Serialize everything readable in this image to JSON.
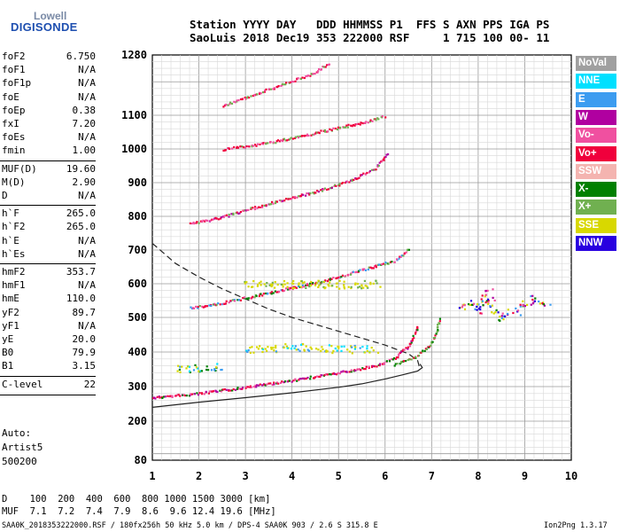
{
  "logo": {
    "line1": "Lowell",
    "line2": "DIGISONDE"
  },
  "header": {
    "row1": "Station YYYY DAY   DDD HHMMSS P1  FFS S AXN PPS IGA PS",
    "row2": "SaoLuis 2018 Dec19 353 222000 RSF     1 715 100 00- 11"
  },
  "params": [
    {
      "group": 1,
      "name": "foF2",
      "value": "6.750"
    },
    {
      "group": 1,
      "name": "foF1",
      "value": "N/A"
    },
    {
      "group": 1,
      "name": "foF1p",
      "value": "N/A"
    },
    {
      "group": 1,
      "name": "foE",
      "value": "N/A"
    },
    {
      "group": 1,
      "name": "foEp",
      "value": "0.38"
    },
    {
      "group": 1,
      "name": "fxI",
      "value": "7.20"
    },
    {
      "group": 1,
      "name": "foEs",
      "value": "N/A"
    },
    {
      "group": 1,
      "name": "fmin",
      "value": "1.00"
    },
    {
      "group": 2,
      "name": "MUF(D)",
      "value": "19.60"
    },
    {
      "group": 2,
      "name": "M(D)",
      "value": "2.90"
    },
    {
      "group": 2,
      "name": "D",
      "value": "N/A"
    },
    {
      "group": 3,
      "name": "h`F",
      "value": "265.0"
    },
    {
      "group": 3,
      "name": "h`F2",
      "value": "265.0"
    },
    {
      "group": 3,
      "name": "h`E",
      "value": "N/A"
    },
    {
      "group": 3,
      "name": "h`Es",
      "value": "N/A"
    },
    {
      "group": 4,
      "name": "hmF2",
      "value": "353.7"
    },
    {
      "group": 4,
      "name": "hmF1",
      "value": "N/A"
    },
    {
      "group": 4,
      "name": "hmE",
      "value": "110.0"
    },
    {
      "group": 4,
      "name": "yF2",
      "value": "89.7"
    },
    {
      "group": 4,
      "name": "yF1",
      "value": "N/A"
    },
    {
      "group": 4,
      "name": "yE",
      "value": "20.0"
    },
    {
      "group": 4,
      "name": "B0",
      "value": "79.9"
    },
    {
      "group": 4,
      "name": "B1",
      "value": "3.15"
    },
    {
      "group": 5,
      "name": "C-level",
      "value": "22"
    }
  ],
  "auto": {
    "label": "Auto:",
    "software": "Artist5",
    "code": "500200"
  },
  "legend": [
    {
      "label": "NoVal",
      "color": "#a0a0a0"
    },
    {
      "label": "NNE",
      "color": "#00e0ff"
    },
    {
      "label": "E",
      "color": "#3c9cf0"
    },
    {
      "label": "W",
      "color": "#b000a0"
    },
    {
      "label": "Vo-",
      "color": "#f050a0"
    },
    {
      "label": "Vo+",
      "color": "#f0003c"
    },
    {
      "label": "SSW",
      "color": "#f4b4b0"
    },
    {
      "label": "X-",
      "color": "#008000"
    },
    {
      "label": "X+",
      "color": "#70b050"
    },
    {
      "label": "SSE",
      "color": "#d8d800"
    },
    {
      "label": "NNW",
      "color": "#2800e0"
    }
  ],
  "muf_table": {
    "row1": "D    100  200  400  600  800 1000 1500 3000 [km]",
    "row2": "MUF  7.1  7.2  7.4  7.9  8.6  9.6 12.4 19.6 [MHz]"
  },
  "footer": {
    "left": "SAA0K_2018353222000.RSF / 180fx256h 50 kHz 5.0 km / DPS-4 SAA0K 903 / 2.6 S 315.8 E",
    "right": "Ion2Png 1.3.17"
  },
  "chart_data": {
    "type": "scatter",
    "title": "",
    "xlabel": "",
    "ylabel": "",
    "xlim": [
      1,
      10
    ],
    "ylim": [
      80,
      1280
    ],
    "y_scale": "nonlinear (ionogram virtual height)",
    "x_ticks": [
      "1",
      "2",
      "3",
      "4",
      "5",
      "6",
      "7",
      "8",
      "9",
      "10"
    ],
    "y_ticks": [
      {
        "value": 80,
        "label": "80"
      },
      {
        "value": 200,
        "label": "200"
      },
      {
        "value": 300,
        "label": "300"
      },
      {
        "value": 400,
        "label": "400"
      },
      {
        "value": 500,
        "label": "500"
      },
      {
        "value": 600,
        "label": "600"
      },
      {
        "value": 700,
        "label": "700"
      },
      {
        "value": 800,
        "label": "800"
      },
      {
        "value": 900,
        "label": "900"
      },
      {
        "value": 1000,
        "label": "1000"
      },
      {
        "value": 1100,
        "label": "1100"
      },
      {
        "value": 1280,
        "label": "1280"
      }
    ],
    "grid": true,
    "traces": [
      {
        "name": "F2 1-hop O trace",
        "x": [
          1.0,
          2.0,
          3.0,
          4.0,
          5.0,
          5.8,
          6.2,
          6.5,
          6.7
        ],
        "y": [
          270,
          282,
          300,
          320,
          342,
          362,
          385,
          420,
          480
        ]
      },
      {
        "name": "F2 1-hop X trace",
        "x": [
          6.2,
          6.6,
          6.95,
          7.1,
          7.15
        ],
        "y": [
          365,
          385,
          420,
          460,
          500
        ]
      },
      {
        "name": "F2 2-hop trace",
        "x": [
          1.8,
          2.5,
          3.5,
          4.5,
          5.2,
          5.8,
          6.2,
          6.4,
          6.5
        ],
        "y": [
          530,
          545,
          575,
          605,
          630,
          655,
          670,
          690,
          710
        ]
      },
      {
        "name": "F2 3-hop trace",
        "x": [
          1.8,
          2.5,
          3.5,
          4.5,
          5.2,
          5.8,
          6.05
        ],
        "y": [
          780,
          800,
          840,
          875,
          905,
          945,
          990
        ]
      },
      {
        "name": "F2 4-hop trace",
        "x": [
          2.5,
          3.5,
          4.5,
          5.5,
          6.0
        ],
        "y": [
          1000,
          1020,
          1050,
          1080,
          1100
        ]
      },
      {
        "name": "F2 5-hop trace",
        "x": [
          2.5,
          3.5,
          4.5,
          4.8
        ],
        "y": [
          1130,
          1180,
          1230,
          1260
        ]
      },
      {
        "name": "Spread echoes ~400 km (SSE)",
        "x": [
          3.0,
          3.5,
          4.0,
          4.5,
          5.0,
          5.5,
          5.8
        ],
        "y": [
          410,
          410,
          415,
          415,
          410,
          410,
          410
        ]
      },
      {
        "name": "Spread echoes ~360 km (E)",
        "x": [
          1.5,
          2.0,
          2.5
        ],
        "y": [
          355,
          355,
          360
        ]
      },
      {
        "name": "Spread echoes ~600 km (SSE)",
        "x": [
          3.0,
          4.0,
          5.0,
          5.5,
          5.9
        ],
        "y": [
          600,
          600,
          600,
          600,
          600
        ]
      },
      {
        "name": "Oblique echo cluster",
        "x": [
          7.6,
          7.8,
          8.0,
          8.2,
          8.4,
          8.8,
          9.2,
          9.5
        ],
        "y": [
          530,
          550,
          520,
          580,
          500,
          520,
          560,
          540
        ]
      }
    ],
    "profile_curves": [
      {
        "name": "dashed curve",
        "x": [
          1.0,
          1.5,
          2.0,
          2.5,
          3.0,
          3.5,
          4.0,
          4.5,
          5.0,
          5.5,
          6.0,
          6.3,
          6.5,
          6.7,
          6.75
        ],
        "y": [
          720,
          660,
          620,
          585,
          555,
          525,
          500,
          480,
          460,
          440,
          420,
          405,
          395,
          375,
          350
        ]
      },
      {
        "name": "solid curve",
        "x": [
          1.0,
          2.0,
          3.0,
          4.0,
          5.0,
          5.5,
          6.0,
          6.4,
          6.7,
          6.8,
          6.75
        ],
        "y": [
          240,
          255,
          268,
          282,
          298,
          308,
          322,
          335,
          345,
          355,
          365
        ]
      }
    ]
  }
}
